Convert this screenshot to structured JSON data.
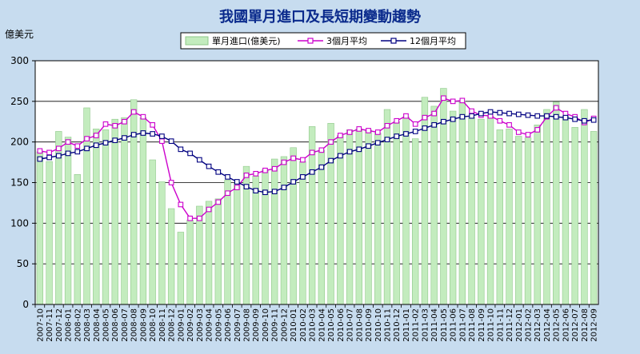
{
  "chart_data": {
    "type": "bar",
    "title": "我國單月進口及長短期變動趨勢",
    "ylabel": "億美元",
    "xlabel": "",
    "ylim": [
      0,
      300
    ],
    "yticks": [
      0,
      50,
      100,
      150,
      200,
      250,
      300
    ],
    "grid": true,
    "legend_position": "top",
    "colors": {
      "background": "#c7dcef",
      "plot_bg": "#ffffff",
      "bar_fill": "#c3ecbe",
      "bar_stroke": "#8fc88a",
      "line3": "#cc00cc",
      "line12": "#000080",
      "title": "#0a2a8c"
    },
    "categories": [
      "2007-10",
      "2007-11",
      "2007-12",
      "2008-01",
      "2008-02",
      "2008-03",
      "2008-04",
      "2008-05",
      "2008-06",
      "2008-07",
      "2008-08",
      "2008-09",
      "2008-10",
      "2008-11",
      "2008-12",
      "2009-01",
      "2009-02",
      "2009-03",
      "2009-04",
      "2009-05",
      "2009-06",
      "2009-07",
      "2009-08",
      "2009-09",
      "2009-10",
      "2009-11",
      "2009-12",
      "2010-01",
      "2010-02",
      "2010-03",
      "2010-04",
      "2010-05",
      "2010-06",
      "2010-07",
      "2010-08",
      "2010-09",
      "2010-10",
      "2010-11",
      "2010-12",
      "2011-01",
      "2011-02",
      "2011-03",
      "2011-04",
      "2011-05",
      "2011-06",
      "2011-07",
      "2011-08",
      "2011-09",
      "2011-10",
      "2011-11",
      "2011-12",
      "2012-01",
      "2012-02",
      "2012-03",
      "2012-04",
      "2012-05",
      "2012-06",
      "2012-07",
      "2012-08",
      "2012-09"
    ],
    "series": [
      {
        "name": "單月進口(億美元)",
        "type": "bar",
        "values": [
          188,
          176,
          213,
          206,
          160,
          242,
          216,
          215,
          228,
          230,
          252,
          230,
          178,
          151,
          118,
          89,
          104,
          121,
          127,
          130,
          153,
          149,
          170,
          158,
          166,
          179,
          182,
          193,
          176,
          219,
          190,
          223,
          208,
          215,
          216,
          215,
          211,
          240,
          225,
          231,
          204,
          255,
          244,
          266,
          238,
          250,
          230,
          228,
          232,
          215,
          216,
          207,
          205,
          221,
          240,
          249,
          232,
          218,
          240,
          213
        ]
      },
      {
        "name": "3個月平均",
        "type": "line",
        "marker": "square",
        "values": [
          189,
          187,
          192,
          200,
          195,
          204,
          208,
          222,
          220,
          225,
          237,
          231,
          221,
          201,
          150,
          123,
          106,
          106,
          117,
          126,
          137,
          144,
          159,
          161,
          165,
          167,
          175,
          180,
          178,
          187,
          190,
          200,
          208,
          212,
          216,
          214,
          212,
          220,
          226,
          232,
          222,
          230,
          235,
          254,
          250,
          251,
          238,
          233,
          232,
          226,
          221,
          212,
          209,
          215,
          231,
          242,
          235,
          231,
          224,
          229
        ]
      },
      {
        "name": "12個月平均",
        "type": "line",
        "marker": "square",
        "values": [
          179,
          181,
          183,
          186,
          188,
          192,
          196,
          199,
          202,
          205,
          209,
          211,
          210,
          207,
          201,
          191,
          186,
          178,
          170,
          163,
          157,
          151,
          145,
          140,
          138,
          139,
          144,
          151,
          157,
          163,
          169,
          177,
          183,
          188,
          191,
          195,
          199,
          203,
          207,
          210,
          213,
          217,
          221,
          225,
          228,
          231,
          232,
          235,
          237,
          236,
          235,
          234,
          233,
          232,
          232,
          231,
          230,
          228,
          226,
          227
        ]
      }
    ]
  }
}
